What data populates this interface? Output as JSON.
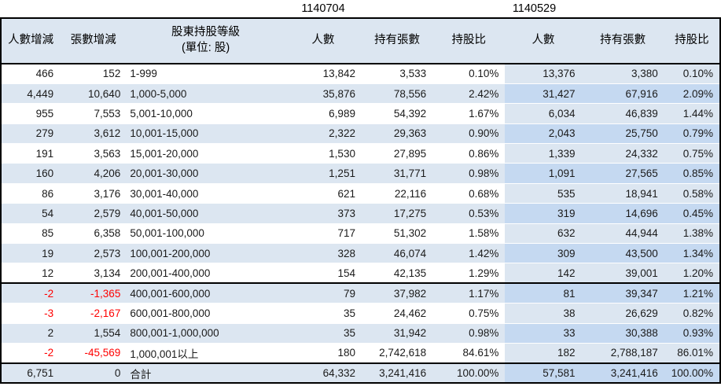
{
  "titles": {
    "left_date": "1140704",
    "right_date": "1140529"
  },
  "columns": {
    "change_people": "人數增減",
    "change_lots": "張數增減",
    "level_line1": "股東持股等級",
    "level_line2": "(單位: 股)",
    "people": "人數",
    "lots_held": "持有張數",
    "ratio": "持股比"
  },
  "colors": {
    "header_bg": "#dce6f1",
    "band_bg": "#dce6f1",
    "right_section_light_bg": "#dce6f1",
    "right_section_dark_bg": "#c5d9f1",
    "negative_text": "#ff0000",
    "border": "#000000",
    "text": "#1a1a1a"
  },
  "chart_data": {
    "type": "table",
    "report_dates": [
      "1140704",
      "1140529"
    ],
    "columns": [
      "人數增減",
      "張數增減",
      "股東持股等級 (單位: 股)",
      "1140704 人數",
      "1140704 持有張數",
      "1140704 持股比",
      "1140529 人數",
      "1140529 持有張數",
      "1140529 持股比"
    ],
    "rows": [
      [
        "466",
        "152",
        "1-999",
        "13,842",
        "3,533",
        "0.10%",
        "13,376",
        "3,380",
        "0.10%"
      ],
      [
        "4,449",
        "10,640",
        "1,000-5,000",
        "35,876",
        "78,556",
        "2.42%",
        "31,427",
        "67,916",
        "2.09%"
      ],
      [
        "955",
        "7,553",
        "5,001-10,000",
        "6,989",
        "54,392",
        "1.67%",
        "6,034",
        "46,839",
        "1.44%"
      ],
      [
        "279",
        "3,612",
        "10,001-15,000",
        "2,322",
        "29,363",
        "0.90%",
        "2,043",
        "25,750",
        "0.79%"
      ],
      [
        "191",
        "3,563",
        "15,001-20,000",
        "1,530",
        "27,895",
        "0.86%",
        "1,339",
        "24,332",
        "0.75%"
      ],
      [
        "160",
        "4,206",
        "20,001-30,000",
        "1,251",
        "31,771",
        "0.98%",
        "1,091",
        "27,565",
        "0.85%"
      ],
      [
        "86",
        "3,176",
        "30,001-40,000",
        "621",
        "22,116",
        "0.68%",
        "535",
        "18,941",
        "0.58%"
      ],
      [
        "54",
        "2,579",
        "40,001-50,000",
        "373",
        "17,275",
        "0.53%",
        "319",
        "14,696",
        "0.45%"
      ],
      [
        "85",
        "6,358",
        "50,001-100,000",
        "717",
        "51,302",
        "1.58%",
        "632",
        "44,944",
        "1.38%"
      ],
      [
        "19",
        "2,573",
        "100,001-200,000",
        "328",
        "46,074",
        "1.42%",
        "309",
        "43,500",
        "1.34%"
      ],
      [
        "12",
        "3,134",
        "200,001-400,000",
        "154",
        "42,135",
        "1.29%",
        "142",
        "39,001",
        "1.20%"
      ],
      [
        "-2",
        "-1,365",
        "400,001-600,000",
        "79",
        "37,982",
        "1.17%",
        "81",
        "39,347",
        "1.21%"
      ],
      [
        "-3",
        "-2,167",
        "600,001-800,000",
        "35",
        "24,462",
        "0.75%",
        "38",
        "26,629",
        "0.82%"
      ],
      [
        "2",
        "1,554",
        "800,001-1,000,000",
        "35",
        "31,942",
        "0.98%",
        "33",
        "30,388",
        "0.93%"
      ],
      [
        "-2",
        "-45,569",
        "1,000,001以上",
        "180",
        "2,742,618",
        "84.61%",
        "182",
        "2,788,187",
        "86.01%"
      ],
      [
        "6,751",
        "0",
        "合計",
        "64,332",
        "3,241,416",
        "100.00%",
        "57,581",
        "3,241,416",
        "100.00%"
      ]
    ]
  }
}
